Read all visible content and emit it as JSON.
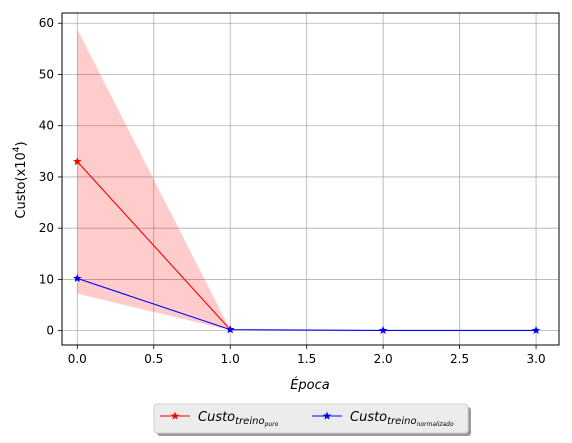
{
  "chart_data": {
    "type": "line",
    "xlabel_main": "Época",
    "ylabel_main": "Custo(x10",
    "ylabel_sup": "4",
    "ylabel_close": ")",
    "xlim": [
      -0.1,
      3.15
    ],
    "ylim": [
      -2.8,
      62
    ],
    "xticks": [
      0.0,
      0.5,
      1.0,
      1.5,
      2.0,
      2.5,
      3.0
    ],
    "xtick_labels": [
      "0.0",
      "0.5",
      "1.0",
      "1.5",
      "2.0",
      "2.5",
      "3.0"
    ],
    "yticks": [
      0,
      10,
      20,
      30,
      40,
      50,
      60
    ],
    "ytick_labels": [
      "0",
      "10",
      "20",
      "30",
      "40",
      "50",
      "60"
    ],
    "grid": true,
    "legend_position": "bottom-center, outside",
    "series": [
      {
        "name_main": "Custo",
        "name_sub": "treino",
        "name_subsub": "puro",
        "color": "#ff0000",
        "marker": "star",
        "x": [
          0,
          1
        ],
        "values": [
          33,
          0.2
        ]
      },
      {
        "name_main": "Custo",
        "name_sub": "treino",
        "name_subsub": "normalizado",
        "color": "#0000ff",
        "marker": "star",
        "x": [
          0,
          1,
          2,
          3
        ],
        "values": [
          10.2,
          0.2,
          0.05,
          0.05
        ]
      }
    ],
    "band": {
      "color": "#ff0000",
      "opacity": 0.2,
      "x": [
        0,
        1
      ],
      "upper": [
        58.8,
        0.2
      ],
      "lower": [
        7.2,
        0.1
      ]
    }
  }
}
